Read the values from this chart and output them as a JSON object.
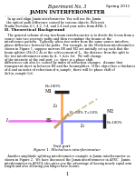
{
  "title_left": "Experiment No. 3",
  "title_right": "Spring 2015",
  "subtitle": "JAMIN INTERFEROMETER",
  "section": "II. Theoretical Background",
  "fig_caption": "Figure 1. Michelson interferometer.",
  "bg_color": "#ffffff",
  "text_color": "#000000",
  "diagram": {
    "beam_pink": "#ee82ee",
    "beam_blue": "#8888ff",
    "beam_orange": "#ffa040",
    "beam_tan": "#c8a878",
    "mirror_color": "#222222",
    "bs_color": "#c8a060",
    "label_color": "#000000",
    "det_color": "#111111"
  }
}
